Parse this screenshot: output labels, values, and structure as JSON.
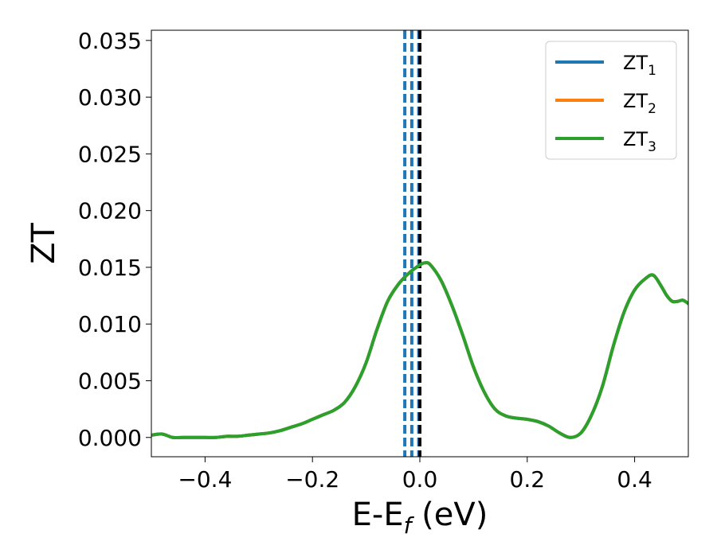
{
  "chart_data": {
    "type": "line",
    "xlabel_main": "E-E",
    "xlabel_sub": "f",
    "xlabel_unit": " (eV)",
    "ylabel": "ZT",
    "xlim": [
      -0.5,
      0.5
    ],
    "ylim": [
      -0.0017,
      0.0359
    ],
    "x_ticks": [
      -0.4,
      -0.2,
      0.0,
      0.2,
      0.4
    ],
    "x_tick_labels": [
      "−0.4",
      "−0.2",
      "0.0",
      "0.2",
      "0.4"
    ],
    "y_ticks": [
      0.0,
      0.005,
      0.01,
      0.015,
      0.02,
      0.025,
      0.03,
      0.035
    ],
    "y_tick_labels": [
      "0.000",
      "0.005",
      "0.010",
      "0.015",
      "0.020",
      "0.025",
      "0.030",
      "0.035"
    ],
    "grid": false,
    "legend_position": "top-right",
    "colors": {
      "blue": "#1f77b4",
      "orange": "#ff7f0e",
      "green": "#2ca02c",
      "black": "#000000"
    },
    "vlines": [
      {
        "x": -0.028,
        "color": "#1f77b4",
        "style": "dashed"
      },
      {
        "x": -0.015,
        "color": "#1f77b4",
        "style": "dashed"
      },
      {
        "x": -0.002,
        "color": "#1f77b4",
        "style": "dashed"
      },
      {
        "x": 0.0,
        "color": "#000000",
        "style": "dashed"
      }
    ],
    "x": [
      -0.5,
      -0.48,
      -0.46,
      -0.44,
      -0.42,
      -0.4,
      -0.38,
      -0.36,
      -0.34,
      -0.32,
      -0.3,
      -0.28,
      -0.26,
      -0.24,
      -0.22,
      -0.2,
      -0.18,
      -0.16,
      -0.14,
      -0.12,
      -0.1,
      -0.08,
      -0.06,
      -0.04,
      -0.02,
      0.0,
      0.01,
      0.02,
      0.04,
      0.06,
      0.08,
      0.1,
      0.12,
      0.14,
      0.16,
      0.18,
      0.2,
      0.22,
      0.24,
      0.26,
      0.28,
      0.3,
      0.32,
      0.34,
      0.36,
      0.38,
      0.4,
      0.42,
      0.435,
      0.45,
      0.46,
      0.47,
      0.48,
      0.49,
      0.5
    ],
    "series": [
      {
        "name_main": "ZT",
        "name_sub": "1",
        "color": "#1f77b4",
        "values": [
          0.0002,
          0.0003,
          0.0,
          0.0,
          0.0,
          0.0,
          0.0,
          0.0001,
          0.0001,
          0.0002,
          0.0003,
          0.0004,
          0.0006,
          0.0009,
          0.0012,
          0.0016,
          0.002,
          0.0024,
          0.0031,
          0.0045,
          0.0066,
          0.0095,
          0.012,
          0.0135,
          0.0145,
          0.0152,
          0.0154,
          0.0152,
          0.0138,
          0.0116,
          0.009,
          0.0062,
          0.004,
          0.0025,
          0.0019,
          0.0017,
          0.0016,
          0.0014,
          0.001,
          0.0004,
          0.0,
          0.0004,
          0.002,
          0.0045,
          0.008,
          0.011,
          0.013,
          0.014,
          0.0143,
          0.0133,
          0.0125,
          0.012,
          0.012,
          0.0121,
          0.0118
        ]
      },
      {
        "name_main": "ZT",
        "name_sub": "2",
        "color": "#ff7f0e",
        "values": [
          0.0002,
          0.0003,
          0.0,
          0.0,
          0.0,
          0.0,
          0.0,
          0.0001,
          0.0001,
          0.0002,
          0.0003,
          0.0004,
          0.0006,
          0.0009,
          0.0012,
          0.0016,
          0.002,
          0.0024,
          0.0031,
          0.0045,
          0.0066,
          0.0095,
          0.012,
          0.0135,
          0.0145,
          0.0152,
          0.0154,
          0.0152,
          0.0138,
          0.0116,
          0.009,
          0.0062,
          0.004,
          0.0025,
          0.0019,
          0.0017,
          0.0016,
          0.0014,
          0.001,
          0.0004,
          0.0,
          0.0004,
          0.002,
          0.0045,
          0.008,
          0.011,
          0.013,
          0.014,
          0.0143,
          0.0133,
          0.0125,
          0.012,
          0.012,
          0.0121,
          0.0118
        ]
      },
      {
        "name_main": "ZT",
        "name_sub": "3",
        "color": "#2ca02c",
        "values": [
          0.0002,
          0.0003,
          0.0,
          0.0,
          0.0,
          0.0,
          0.0,
          0.0001,
          0.0001,
          0.0002,
          0.0003,
          0.0004,
          0.0006,
          0.0009,
          0.0012,
          0.0016,
          0.002,
          0.0024,
          0.0031,
          0.0045,
          0.0066,
          0.0095,
          0.012,
          0.0135,
          0.0145,
          0.0152,
          0.0154,
          0.0152,
          0.0138,
          0.0116,
          0.009,
          0.0062,
          0.004,
          0.0025,
          0.0019,
          0.0017,
          0.0016,
          0.0014,
          0.001,
          0.0004,
          0.0,
          0.0004,
          0.002,
          0.0045,
          0.008,
          0.011,
          0.013,
          0.014,
          0.0143,
          0.0133,
          0.0125,
          0.012,
          0.012,
          0.0121,
          0.0118
        ]
      }
    ]
  }
}
